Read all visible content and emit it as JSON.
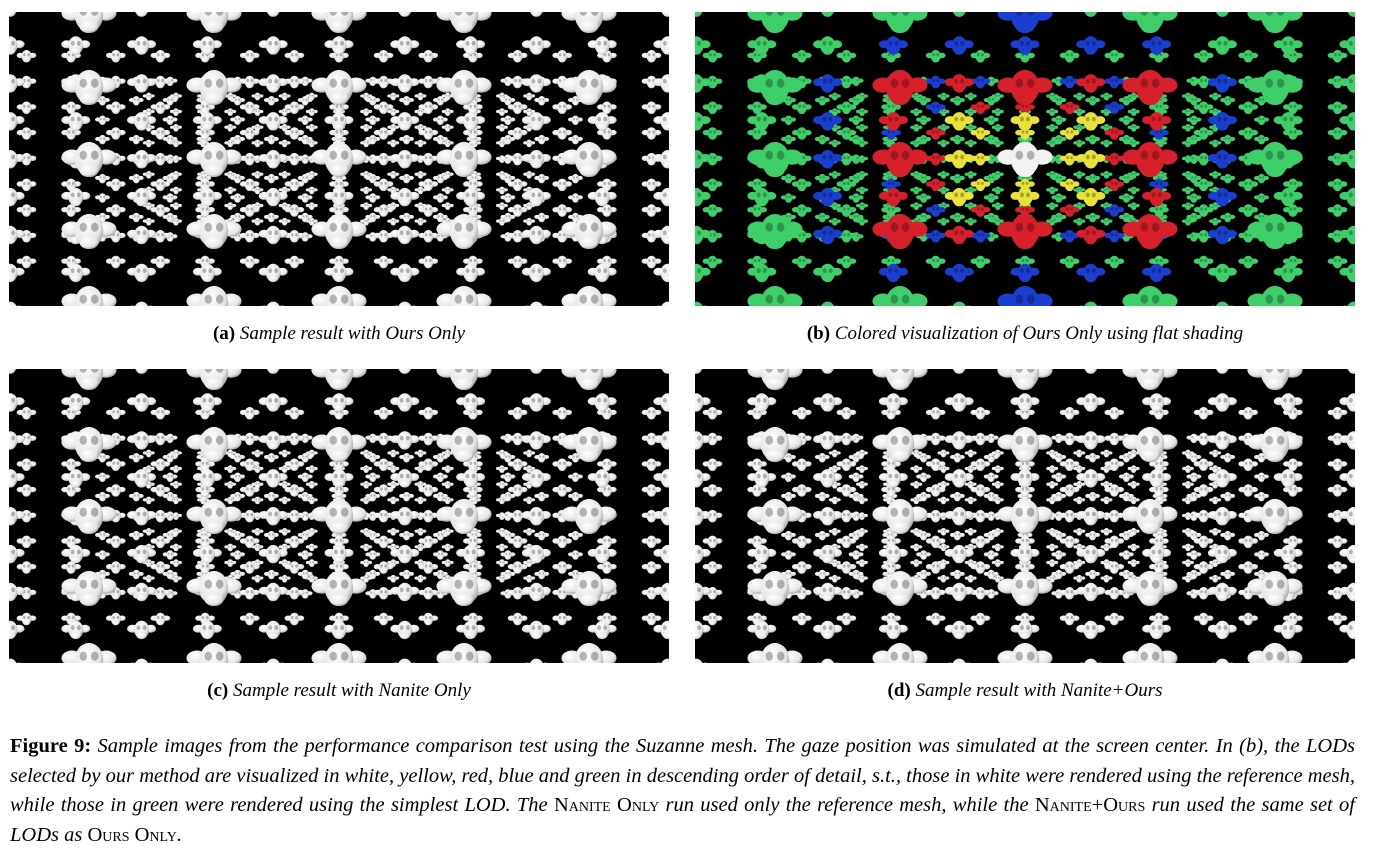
{
  "figure": {
    "label": "Figure 9:",
    "caption_parts": [
      {
        "style": "i",
        "text": " Sample images from the performance comparison test using the Suzanne mesh. The gaze position was simulated at the screen center. In (b), the LODs selected by our method are visualized in white, yellow, red, blue and green in descending order of detail, s.t., those in white were rendered using the reference mesh, while those in green were rendered using the simplest LOD. The "
      },
      {
        "style": "sc",
        "text": "Nanite Only"
      },
      {
        "style": "i",
        "text": " run used only the reference mesh, while the "
      },
      {
        "style": "sc",
        "text": "Nanite+Ours"
      },
      {
        "style": "i",
        "text": " run used the same set of LODs as "
      },
      {
        "style": "sc",
        "text": "Ours Only"
      },
      {
        "style": "i",
        "text": "."
      }
    ]
  },
  "panels": [
    {
      "id": "a",
      "label": "(a)",
      "caption": "Sample result with Ours Only",
      "mode": "gray"
    },
    {
      "id": "b",
      "label": "(b)",
      "caption": "Colored visualization of Ours Only using flat shading",
      "mode": "color"
    },
    {
      "id": "c",
      "label": "(c)",
      "caption": "Sample result with Nanite Only",
      "mode": "gray"
    },
    {
      "id": "d",
      "label": "(d)",
      "caption": "Sample result with Nanite+Ours",
      "mode": "gray"
    }
  ],
  "lod_colors": {
    "white": "#f2f2f2",
    "yellow": "#e8e23a",
    "red": "#d8202c",
    "blue": "#1a3fd0",
    "green": "#3ecf6a"
  },
  "gray_shade": "#e6e6e6"
}
